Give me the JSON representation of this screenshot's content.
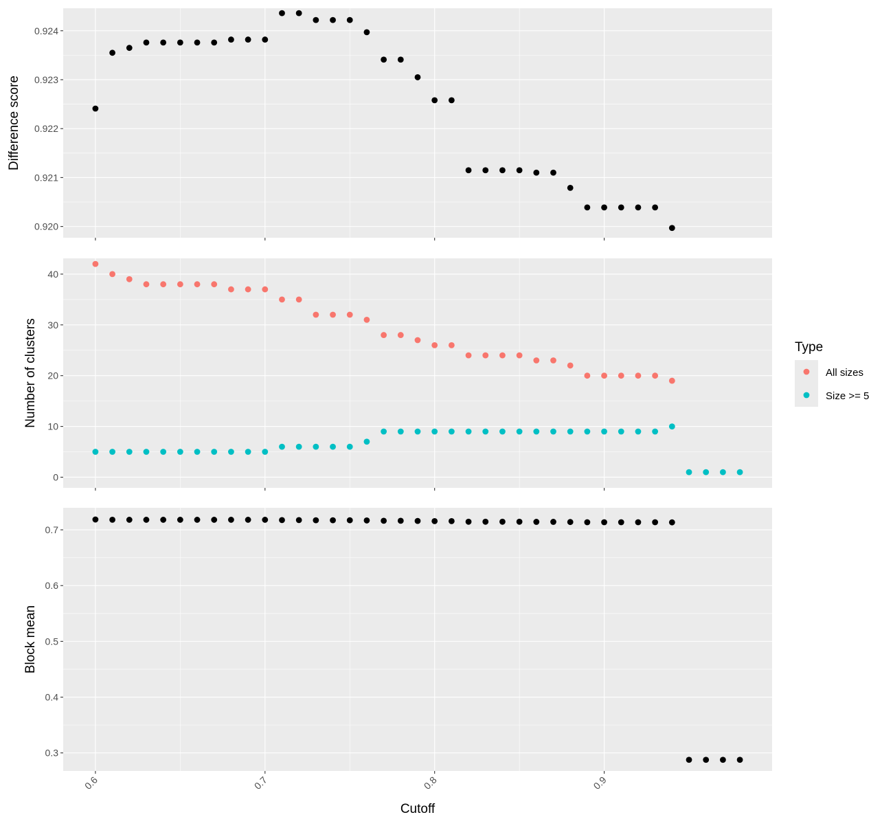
{
  "figure": {
    "xlabel": "Cutoff",
    "legend": {
      "title": "Type",
      "placement": "right",
      "entries": [
        {
          "label": "All sizes",
          "color": "#F8766D"
        },
        {
          "label": "Size >= 5",
          "color": "#00BFC4"
        }
      ]
    },
    "colors": {
      "panel_bg": "#EBEBEB",
      "grid": "#FFFFFF",
      "default_point": "#000000",
      "all_sizes": "#F8766D",
      "size_ge_5": "#00BFC4"
    }
  },
  "chart_data": [
    {
      "type": "scatter",
      "panel": "top",
      "ylabel": "Difference score",
      "xlim": [
        0.581,
        0.999
      ],
      "ylim": [
        0.91977,
        0.92446
      ],
      "xticks": [
        0.6,
        0.7,
        0.8,
        0.9
      ],
      "yticks": [
        0.92,
        0.921,
        0.922,
        0.923,
        0.924
      ],
      "ytick_labels": [
        "0.920",
        "0.921",
        "0.922",
        "0.923",
        "0.924"
      ],
      "grid": true,
      "show_x_tick_labels": false,
      "series": [
        {
          "color": "#000000",
          "x": [
            0.6,
            0.61,
            0.62,
            0.63,
            0.64,
            0.65,
            0.66,
            0.67,
            0.68,
            0.69,
            0.7,
            0.71,
            0.72,
            0.73,
            0.74,
            0.75,
            0.76,
            0.77,
            0.78,
            0.79,
            0.8,
            0.81,
            0.82,
            0.83,
            0.84,
            0.85,
            0.86,
            0.87,
            0.88,
            0.89,
            0.9,
            0.91,
            0.92,
            0.93,
            0.94
          ],
          "y": [
            0.92241,
            0.92355,
            0.92365,
            0.92376,
            0.92376,
            0.92376,
            0.92376,
            0.92376,
            0.92382,
            0.92382,
            0.92382,
            0.92436,
            0.92436,
            0.92422,
            0.92422,
            0.92422,
            0.92397,
            0.92341,
            0.92341,
            0.92305,
            0.92258,
            0.92258,
            0.92115,
            0.92115,
            0.92115,
            0.92115,
            0.9211,
            0.9211,
            0.92079,
            0.92039,
            0.92039,
            0.92039,
            0.92039,
            0.92039,
            0.91997
          ]
        }
      ]
    },
    {
      "type": "scatter",
      "panel": "middle",
      "ylabel": "Number of clusters",
      "xlim": [
        0.581,
        0.999
      ],
      "ylim": [
        -2.1,
        43.1
      ],
      "xticks": [
        0.6,
        0.7,
        0.8,
        0.9
      ],
      "yticks": [
        0,
        10,
        20,
        30,
        40
      ],
      "ytick_labels": [
        "0",
        "10",
        "20",
        "30",
        "40"
      ],
      "grid": true,
      "show_x_tick_labels": false,
      "series": [
        {
          "name": "All sizes",
          "color": "#F8766D",
          "x": [
            0.6,
            0.61,
            0.62,
            0.63,
            0.64,
            0.65,
            0.66,
            0.67,
            0.68,
            0.69,
            0.7,
            0.71,
            0.72,
            0.73,
            0.74,
            0.75,
            0.76,
            0.77,
            0.78,
            0.79,
            0.8,
            0.81,
            0.82,
            0.83,
            0.84,
            0.85,
            0.86,
            0.87,
            0.88,
            0.89,
            0.9,
            0.91,
            0.92,
            0.93,
            0.94
          ],
          "y": [
            42,
            40,
            39,
            38,
            38,
            38,
            38,
            38,
            37,
            37,
            37,
            35,
            35,
            32,
            32,
            32,
            31,
            28,
            28,
            27,
            26,
            26,
            24,
            24,
            24,
            24,
            23,
            23,
            22,
            20,
            20,
            20,
            20,
            20,
            19
          ]
        },
        {
          "name": "Size >= 5",
          "color": "#00BFC4",
          "x": [
            0.6,
            0.61,
            0.62,
            0.63,
            0.64,
            0.65,
            0.66,
            0.67,
            0.68,
            0.69,
            0.7,
            0.71,
            0.72,
            0.73,
            0.74,
            0.75,
            0.76,
            0.77,
            0.78,
            0.79,
            0.8,
            0.81,
            0.82,
            0.83,
            0.84,
            0.85,
            0.86,
            0.87,
            0.88,
            0.89,
            0.9,
            0.91,
            0.92,
            0.93,
            0.94,
            0.95,
            0.96,
            0.97,
            0.98
          ],
          "y": [
            5,
            5,
            5,
            5,
            5,
            5,
            5,
            5,
            5,
            5,
            5,
            6,
            6,
            6,
            6,
            6,
            7,
            9,
            9,
            9,
            9,
            9,
            9,
            9,
            9,
            9,
            9,
            9,
            9,
            9,
            9,
            9,
            9,
            9,
            10,
            1,
            1,
            1,
            1
          ]
        }
      ]
    },
    {
      "type": "scatter",
      "panel": "bottom",
      "ylabel": "Block mean",
      "xlim": [
        0.581,
        0.999
      ],
      "ylim": [
        0.2676,
        0.7395
      ],
      "xticks": [
        0.6,
        0.7,
        0.8,
        0.9
      ],
      "xtick_labels": [
        "0.6",
        "0.7",
        "0.8",
        "0.9"
      ],
      "yticks": [
        0.3,
        0.4,
        0.5,
        0.6,
        0.7
      ],
      "ytick_labels": [
        "0.3",
        "0.4",
        "0.5",
        "0.6",
        "0.7"
      ],
      "grid": true,
      "show_x_tick_labels": true,
      "series": [
        {
          "color": "#000000",
          "x": [
            0.6,
            0.61,
            0.62,
            0.63,
            0.64,
            0.65,
            0.66,
            0.67,
            0.68,
            0.69,
            0.7,
            0.71,
            0.72,
            0.73,
            0.74,
            0.75,
            0.76,
            0.77,
            0.78,
            0.79,
            0.8,
            0.81,
            0.82,
            0.83,
            0.84,
            0.85,
            0.86,
            0.87,
            0.88,
            0.89,
            0.9,
            0.91,
            0.92,
            0.93,
            0.94,
            0.95,
            0.96,
            0.97,
            0.98
          ],
          "y": [
            0.7185,
            0.7181,
            0.718,
            0.718,
            0.718,
            0.718,
            0.718,
            0.718,
            0.718,
            0.718,
            0.718,
            0.7175,
            0.7175,
            0.7172,
            0.7172,
            0.7172,
            0.7168,
            0.7162,
            0.7162,
            0.7159,
            0.7156,
            0.7156,
            0.7145,
            0.7145,
            0.7145,
            0.7145,
            0.7143,
            0.7143,
            0.714,
            0.7136,
            0.7136,
            0.7136,
            0.7136,
            0.7136,
            0.7134,
            0.2876,
            0.2876,
            0.2876,
            0.2876
          ]
        }
      ]
    }
  ]
}
